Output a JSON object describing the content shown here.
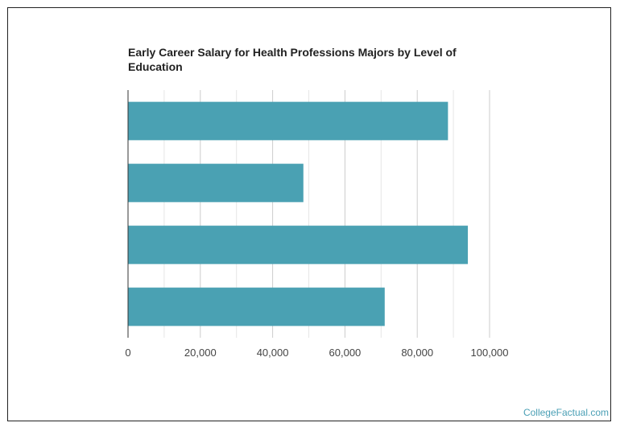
{
  "chart_data": {
    "type": "bar",
    "orientation": "horizontal",
    "title": "Early Career Salary for Health Professions Majors by Level of Education",
    "xlabel": "",
    "ylabel": "",
    "categories": [
      "",
      "",
      "",
      ""
    ],
    "values": [
      88500,
      48500,
      94000,
      71000
    ],
    "xlim": [
      0,
      100000
    ],
    "xticks": [
      0,
      20000,
      40000,
      60000,
      80000,
      100000
    ],
    "xtick_labels": [
      "0",
      "20,000",
      "40,000",
      "60,000",
      "80,000",
      "100,000"
    ],
    "bar_color": "#4aa1b3",
    "grid": true,
    "legend": "none"
  },
  "footer": {
    "source": "CollegeFactual.com"
  }
}
